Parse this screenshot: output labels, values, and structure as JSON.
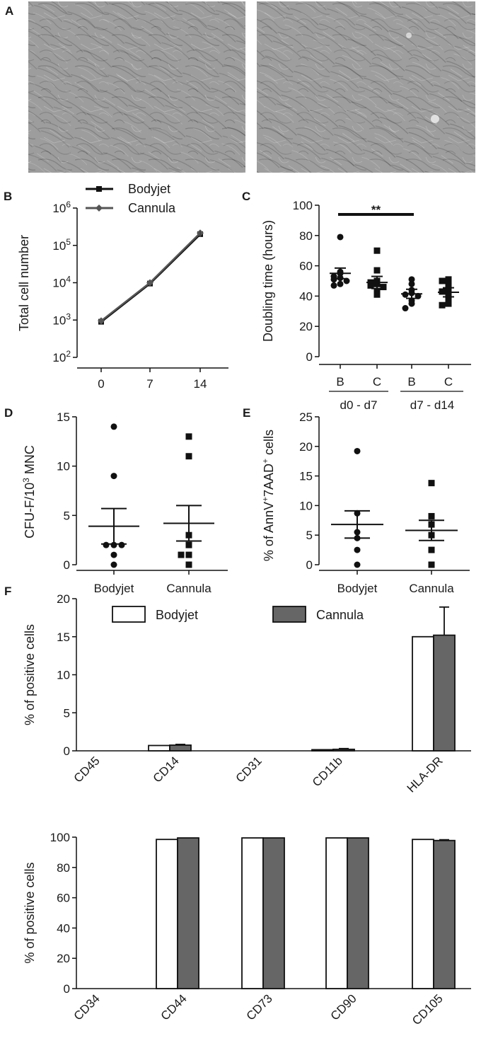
{
  "panel_labels": {
    "A": "A",
    "B": "B",
    "C": "C",
    "D": "D",
    "E": "E",
    "F": "F"
  },
  "micrographs": [
    {
      "description": "phase-contrast micrograph (left)"
    },
    {
      "description": "phase-contrast micrograph (right)"
    }
  ],
  "chart_data": [
    {
      "id": "B",
      "type": "line",
      "xlabel": "",
      "ylabel": "Total cell number",
      "x": [
        0,
        7,
        14
      ],
      "x_tick_labels": [
        "0",
        "7",
        "14"
      ],
      "y_scale": "log",
      "ylim": [
        100,
        1000000
      ],
      "y_tick_labels": [
        {
          "base": "10",
          "exp": "2"
        },
        {
          "base": "10",
          "exp": "3"
        },
        {
          "base": "10",
          "exp": "4"
        },
        {
          "base": "10",
          "exp": "5"
        },
        {
          "base": "10",
          "exp": "6"
        }
      ],
      "legend_position": "top-left",
      "series": [
        {
          "name": "Bodyjet",
          "values": [
            900,
            9500,
            200000
          ],
          "marker": "square"
        },
        {
          "name": "Cannula",
          "values": [
            950,
            10000,
            215000
          ],
          "marker": "diamond"
        }
      ]
    },
    {
      "id": "C",
      "type": "scatter",
      "ylabel": "Doubling time (hours)",
      "ylim": [
        0,
        100
      ],
      "y_ticks": [
        0,
        20,
        40,
        60,
        80,
        100
      ],
      "categories": [
        "B",
        "C",
        "B",
        "C"
      ],
      "groups": [
        "d0 - d7",
        "d7 - d14"
      ],
      "significance": {
        "from": 0,
        "to": 2,
        "label": "**"
      },
      "points": [
        {
          "marker": "circle",
          "mean": 55,
          "sem": 3.5,
          "values": [
            79,
            56,
            55,
            53,
            52,
            51,
            50,
            48,
            47
          ]
        },
        {
          "marker": "square",
          "mean": 49,
          "sem": 4,
          "values": [
            70,
            57,
            50,
            49,
            48,
            47,
            46,
            43,
            41
          ]
        },
        {
          "marker": "circle",
          "mean": 41.5,
          "sem": 3,
          "values": [
            51,
            48,
            44,
            42,
            41,
            40,
            37,
            35,
            32
          ]
        },
        {
          "marker": "square",
          "mean": 42.5,
          "sem": 3,
          "values": [
            51,
            50,
            47,
            44,
            43,
            41,
            38,
            35,
            34
          ]
        }
      ]
    },
    {
      "id": "D",
      "type": "scatter",
      "ylabel_base": "CFU-F/10",
      "ylabel_exp": "3",
      "ylabel_tail": " MNC",
      "ylim": [
        0,
        15
      ],
      "y_ticks": [
        0,
        5,
        10,
        15
      ],
      "categories": [
        "Bodyjet",
        "Cannula"
      ],
      "points": [
        {
          "marker": "circle",
          "mean": 3.9,
          "sem": 1.8,
          "values": [
            14,
            9,
            2,
            2,
            2,
            1,
            0
          ]
        },
        {
          "marker": "square",
          "mean": 4.2,
          "sem": 1.8,
          "values": [
            13,
            11,
            3,
            2,
            1,
            1,
            0
          ]
        }
      ]
    },
    {
      "id": "E",
      "type": "scatter",
      "ylabel_parts": [
        "% of AnnV",
        "+",
        "7AAD",
        "+",
        " cells"
      ],
      "ylim": [
        0,
        25
      ],
      "y_ticks": [
        0,
        5,
        10,
        15,
        20,
        25
      ],
      "categories": [
        "Bodyjet",
        "Cannula"
      ],
      "points": [
        {
          "marker": "circle",
          "mean": 6.8,
          "sem": 2.3,
          "values": [
            19.2,
            8.7,
            5.5,
            4.5,
            2.5,
            0
          ]
        },
        {
          "marker": "square",
          "mean": 5.8,
          "sem": 1.7,
          "values": [
            13.8,
            8.2,
            6.8,
            5,
            2.5,
            0
          ]
        }
      ]
    },
    {
      "id": "F1",
      "type": "bar",
      "ylabel": "% of positive cells",
      "ylim": [
        0,
        20
      ],
      "y_ticks": [
        0,
        5,
        10,
        15,
        20
      ],
      "categories": [
        "CD45",
        "CD14",
        "CD31",
        "CD11b",
        "HLA-DR"
      ],
      "legend_position": "top",
      "series": [
        {
          "name": "Bodyjet",
          "color": "#ffffff",
          "values": [
            0,
            0.7,
            0,
            0.15,
            15
          ],
          "errors": [
            0,
            0,
            0,
            0,
            0
          ]
        },
        {
          "name": "Cannula",
          "color": "#666666",
          "values": [
            0,
            0.75,
            0,
            0.2,
            15.2
          ],
          "errors": [
            0,
            0.1,
            0,
            0.1,
            3.7
          ]
        }
      ]
    },
    {
      "id": "F2",
      "type": "bar",
      "ylabel": "% of positive cells",
      "ylim": [
        0,
        100
      ],
      "y_ticks": [
        0,
        20,
        40,
        60,
        80,
        100
      ],
      "categories": [
        "CD34",
        "CD44",
        "CD73",
        "CD90",
        "CD105"
      ],
      "series": [
        {
          "name": "Bodyjet",
          "color": "#ffffff",
          "values": [
            0,
            98.5,
            99.5,
            99.5,
            98.5
          ],
          "errors": [
            0,
            0,
            0,
            0,
            0
          ]
        },
        {
          "name": "Cannula",
          "color": "#666666",
          "values": [
            0,
            99.5,
            99.5,
            99.5,
            97.8
          ],
          "errors": [
            0,
            0,
            0,
            0,
            0.5
          ]
        }
      ]
    }
  ]
}
